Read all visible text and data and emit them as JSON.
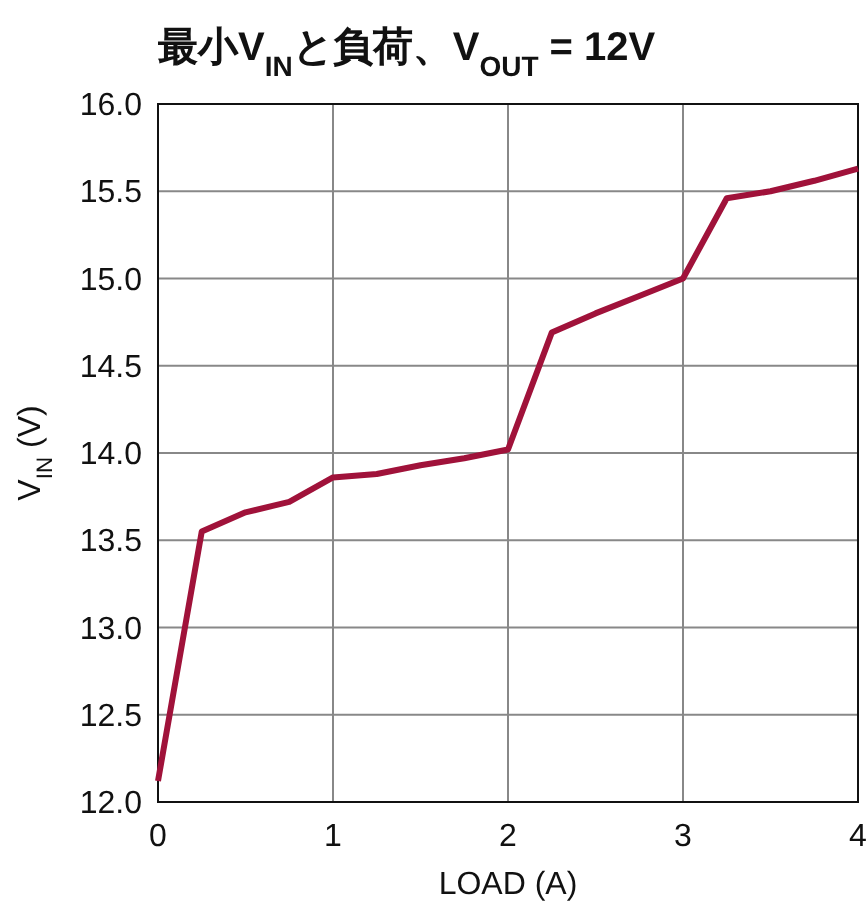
{
  "chart_data": {
    "type": "line",
    "title": "最小V$_{IN}$と負荷、V$_{OUT}$ = 12V",
    "xlabel": "LOAD (A)",
    "ylabel": "V$_{IN}$ (V)",
    "x": [
      0,
      0.25,
      0.5,
      0.75,
      1,
      1.25,
      1.5,
      1.75,
      2,
      2.25,
      2.5,
      2.75,
      3,
      3.25,
      3.5,
      3.75,
      4
    ],
    "series": [
      {
        "color": "#a0123a",
        "values": [
          12.12,
          13.55,
          13.66,
          13.72,
          13.86,
          13.88,
          13.93,
          13.97,
          14.02,
          14.69,
          14.8,
          14.9,
          15.0,
          15.46,
          15.5,
          15.56,
          15.63
        ]
      }
    ],
    "xlim": [
      0,
      4
    ],
    "xticks": [
      0,
      1,
      2,
      3,
      4
    ],
    "ylim": [
      12,
      16
    ],
    "yticks": [
      {
        "value": 12,
        "label": "12.0"
      },
      {
        "value": 12.5,
        "label": "12.5"
      },
      {
        "value": 13,
        "label": "13.0"
      },
      {
        "value": 13.5,
        "label": "13.5"
      },
      {
        "value": 14,
        "label": "14.0"
      },
      {
        "value": 14.5,
        "label": "14.5"
      },
      {
        "value": 15,
        "label": "15.0"
      },
      {
        "value": 15.5,
        "label": "15.5"
      },
      {
        "value": 16,
        "label": "16.0"
      }
    ],
    "grid": true,
    "marker": "none",
    "line_style": "solid"
  }
}
